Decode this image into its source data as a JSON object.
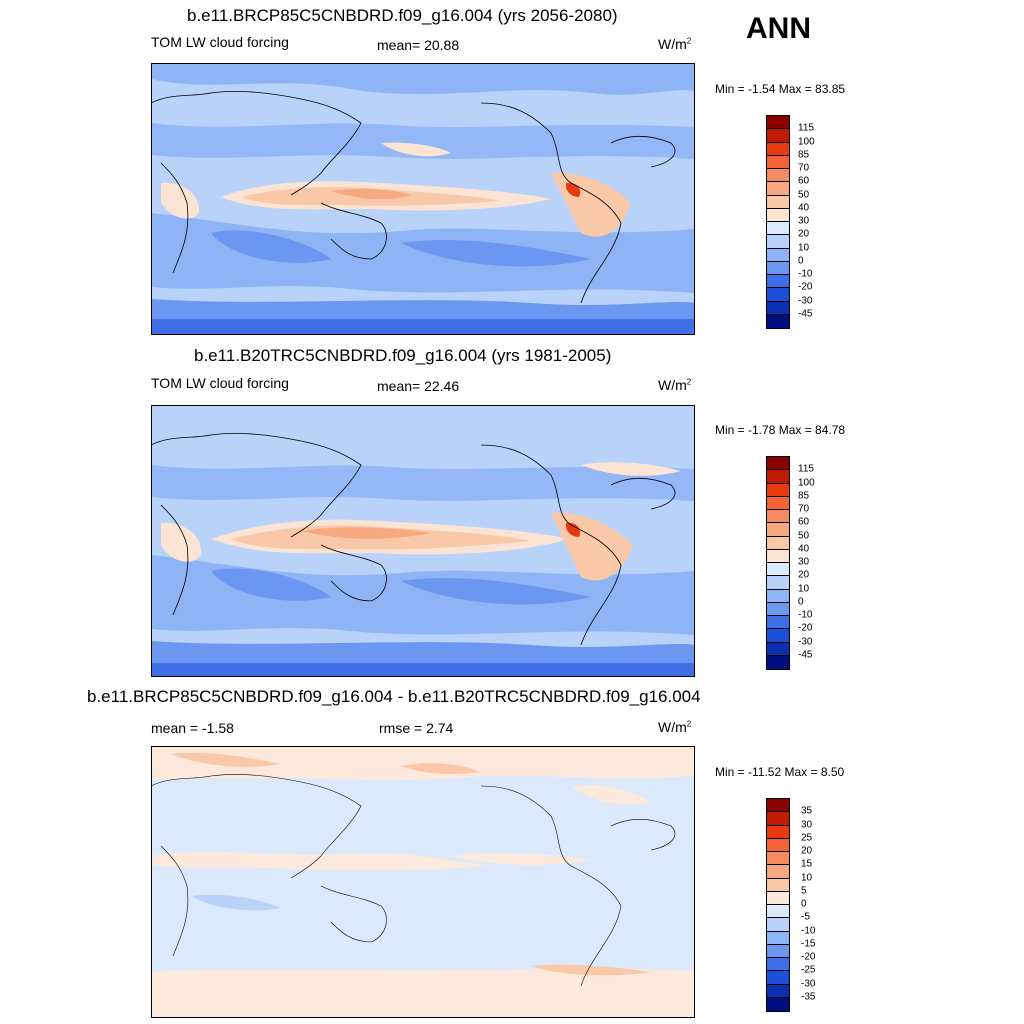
{
  "season_label": "ANN",
  "panels": [
    {
      "title": "b.e11.BRCP85C5CNBDRD.f09_g16.004 (yrs 2056-2080)",
      "left_label": "TOM LW cloud forcing",
      "center_label": "mean=  20.88",
      "units": "W/m",
      "units_sup": "2",
      "minmax": "Min =  -1.54 Max =  83.85",
      "levels": [
        "115",
        "100",
        "85",
        "70",
        "60",
        "50",
        "40",
        "30",
        "20",
        "10",
        "0",
        "-10",
        "-20",
        "-30",
        "-45"
      ],
      "colors": [
        "#8b0000",
        "#c01a00",
        "#e83a10",
        "#f26437",
        "#f48c62",
        "#f6a980",
        "#f9c8a8",
        "#fbe4d4",
        "#dae9fb",
        "#b8d2fa",
        "#8fb4f6",
        "#6b97f0",
        "#3f6fe6",
        "#1e4fd8",
        "#0a2fb0",
        "#000f80"
      ]
    },
    {
      "title": "b.e11.B20TRC5CNBDRD.f09_g16.004 (yrs 1981-2005)",
      "left_label": "TOM LW cloud forcing",
      "center_label": "mean=  22.46",
      "units": "W/m",
      "units_sup": "2",
      "minmax": "Min =  -1.78 Max =  84.78",
      "levels": [
        "115",
        "100",
        "85",
        "70",
        "60",
        "50",
        "40",
        "30",
        "20",
        "10",
        "0",
        "-10",
        "-20",
        "-30",
        "-45"
      ],
      "colors": [
        "#8b0000",
        "#c01a00",
        "#e83a10",
        "#f26437",
        "#f48c62",
        "#f6a980",
        "#f9c8a8",
        "#fbe4d4",
        "#dae9fb",
        "#b8d2fa",
        "#8fb4f6",
        "#6b97f0",
        "#3f6fe6",
        "#1e4fd8",
        "#0a2fb0",
        "#000f80"
      ]
    },
    {
      "title": "b.e11.BRCP85C5CNBDRD.f09_g16.004 - b.e11.B20TRC5CNBDRD.f09_g16.004",
      "left_label": "mean =  -1.58",
      "center_label": "rmse =   2.74",
      "units": "W/m",
      "units_sup": "2",
      "minmax": "Min = -11.52 Max =   8.50",
      "levels": [
        "35",
        "30",
        "25",
        "20",
        "15",
        "10",
        "5",
        "0",
        "-5",
        "-10",
        "-15",
        "-20",
        "-25",
        "-30",
        "-35"
      ],
      "colors": [
        "#8b0000",
        "#c01a00",
        "#e83a10",
        "#f26437",
        "#f48c62",
        "#f6a980",
        "#f9c8a8",
        "#fde9dc",
        "#dae9fb",
        "#b8d2fa",
        "#8fb4f6",
        "#6b97f0",
        "#3f6fe6",
        "#1e4fd8",
        "#0a2fb0",
        "#000f80"
      ]
    }
  ]
}
